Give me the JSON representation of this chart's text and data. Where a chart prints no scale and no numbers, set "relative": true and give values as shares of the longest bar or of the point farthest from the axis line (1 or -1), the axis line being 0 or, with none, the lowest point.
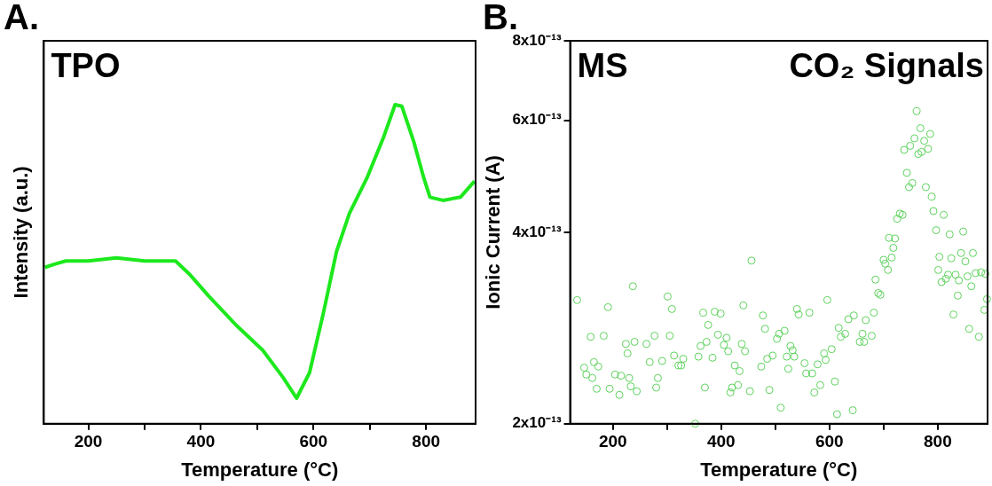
{
  "chart_data": [
    {
      "type": "line",
      "xlabel": "Temperature (°C)",
      "ylabel": "Intensity (a.u.)",
      "relative": true,
      "annotations": [
        "A.",
        "TPO"
      ],
      "xlim": [
        121,
        888
      ],
      "xticks": [
        200,
        {
          "value": 300,
          "label": null
        },
        400,
        {
          "value": 500,
          "label": null
        },
        600,
        {
          "value": 700,
          "label": null
        },
        800
      ],
      "grid": false,
      "legend": false,
      "marker": "none",
      "line_style": "solid",
      "series": [
        {
          "color": "#1de81d",
          "x": [
            123,
            140,
            160,
            200,
            250,
            300,
            355,
            379,
            414,
            462,
            510,
            546,
            570,
            593,
            618,
            641,
            664,
            695,
            725,
            745,
            757,
            778,
            796,
            807,
            830,
            861,
            886
          ],
          "values": [
            0.49,
            0.5,
            0.51,
            0.51,
            0.52,
            0.51,
            0.51,
            0.47,
            0.4,
            0.31,
            0.23,
            0.145,
            0.08,
            0.16,
            0.35,
            0.54,
            0.66,
            0.77,
            0.9,
            1.0,
            0.995,
            0.885,
            0.77,
            0.71,
            0.7,
            0.71,
            0.76
          ]
        }
      ]
    },
    {
      "type": "scatter",
      "xlabel": "Temperature (°C)",
      "ylabel": "Ionic Current (A)",
      "annotations": [
        "B.",
        "MS",
        "CO₂ Signals"
      ],
      "xlim": [
        121,
        892
      ],
      "xticks": [
        200,
        {
          "value": 300,
          "label": null
        },
        400,
        {
          "value": 500,
          "label": null
        },
        600,
        {
          "value": 700,
          "label": null
        },
        800
      ],
      "log": "y",
      "ylim": [
        2e-13,
        8e-13
      ],
      "yticks": [
        {
          "value": 2e-13,
          "label": "2x10⁻¹³"
        },
        {
          "value": 4e-13,
          "label": "4x10⁻¹³"
        },
        {
          "value": 6e-13,
          "label": "6x10⁻¹³"
        },
        {
          "value": 8e-13,
          "label": "8x10⁻¹³"
        }
      ],
      "grid": false,
      "legend": false,
      "marker": "circle",
      "series": [
        {
          "color": "#5fd35f",
          "x": [
            134,
            147,
            151,
            159,
            162,
            165,
            170,
            173,
            183,
            191,
            194,
            204,
            212,
            215,
            227,
            224,
            230,
            233,
            237,
            240,
            244,
            262,
            268,
            277,
            280,
            283,
            291,
            301,
            305,
            309,
            313,
            321,
            326,
            330,
            352,
            358,
            362,
            367,
            370,
            373,
            376,
            384,
            388,
            394,
            399,
            405,
            410,
            413,
            417,
            420,
            425,
            431,
            434,
            438,
            441,
            444,
            453,
            456,
            474,
            477,
            481,
            485,
            489,
            495,
            503,
            507,
            510,
            517,
            521,
            524,
            528,
            532,
            535,
            540,
            543,
            554,
            557,
            563,
            568,
            572,
            578,
            583,
            590,
            593,
            596,
            604,
            610,
            614,
            617,
            621,
            629,
            635,
            643,
            645,
            656,
            661,
            664,
            667,
            678,
            682,
            685,
            690,
            694,
            700,
            703,
            708,
            710,
            715,
            718,
            721,
            725,
            730,
            735,
            738,
            743,
            747,
            749,
            753,
            757,
            761,
            764,
            768,
            770,
            775,
            778,
            782,
            786,
            789,
            792,
            797,
            801,
            803,
            807,
            811,
            815,
            819,
            822,
            825,
            829,
            833,
            837,
            839,
            843,
            847,
            851,
            855,
            858,
            862,
            865,
            870,
            876,
            880,
            886,
            888,
            891
          ],
          "values": [
            3.13e-13,
            2.45e-13,
            2.39e-13,
            2.74e-13,
            2.36e-13,
            2.5e-13,
            2.27e-13,
            2.46e-13,
            2.75e-13,
            3.05e-13,
            2.27e-13,
            2.39e-13,
            2.22e-13,
            2.38e-13,
            2.58e-13,
            2.67e-13,
            2.36e-13,
            2.29e-13,
            3.29e-13,
            2.69e-13,
            2.25e-13,
            2.67e-13,
            2.5e-13,
            2.75e-13,
            2.28e-13,
            2.36e-13,
            2.51e-13,
            3.17e-13,
            2.75e-13,
            3.03e-13,
            2.56e-13,
            2.47e-13,
            2.47e-13,
            2.53e-13,
            2e-13,
            2.55e-13,
            2.65e-13,
            2.99e-13,
            2.28e-13,
            2.69e-13,
            2.86e-13,
            2.54e-13,
            3e-13,
            2.76e-13,
            2.98e-13,
            2.66e-13,
            2.73e-13,
            2.6e-13,
            2.24e-13,
            2.28e-13,
            2.47e-13,
            2.3e-13,
            2.42e-13,
            2.67e-13,
            3.07e-13,
            2.6e-13,
            2.25e-13,
            3.61e-13,
            2.46e-13,
            2.96e-13,
            2.82e-13,
            2.53e-13,
            2.26e-13,
            2.56e-13,
            2.72e-13,
            2.77e-13,
            2.12e-13,
            2.8e-13,
            2.55e-13,
            2.44e-13,
            2.65e-13,
            2.61e-13,
            2.55e-13,
            3.03e-13,
            2.97e-13,
            2.49e-13,
            2.4e-13,
            2.99e-13,
            2.4e-13,
            2.24e-13,
            2.48e-13,
            2.3e-13,
            2.58e-13,
            2.52e-13,
            3.13e-13,
            2.62e-13,
            2.33e-13,
            2.07e-13,
            2.83e-13,
            2.74e-13,
            2.77e-13,
            2.92e-13,
            2.1e-13,
            2.96e-13,
            2.69e-13,
            2.77e-13,
            2.69e-13,
            2.91e-13,
            2.75e-13,
            2.99e-13,
            3.37e-13,
            3.21e-13,
            3.19e-13,
            3.62e-13,
            3.57e-13,
            3.49e-13,
            3.92e-13,
            3.65e-13,
            3.78e-13,
            3.91e-13,
            4.2e-13,
            4.28e-13,
            4.26e-13,
            5.39e-13,
            4.96e-13,
            4.71e-13,
            5.47e-13,
            4.78e-13,
            5.62e-13,
            6.2e-13,
            5.31e-13,
            5.83e-13,
            5.35e-13,
            5.57e-13,
            4.71e-13,
            5.41e-13,
            5.71e-13,
            4.55e-13,
            4.32e-13,
            4.03e-13,
            3.49e-13,
            3.66e-13,
            3.34e-13,
            4.26e-13,
            3.38e-13,
            3.43e-13,
            3.97e-13,
            3.64e-13,
            2.97e-13,
            3.43e-13,
            3.18e-13,
            3.36e-13,
            3.71e-13,
            4.01e-13,
            3.6e-13,
            3.41e-13,
            2.82e-13,
            3.29e-13,
            3.71e-13,
            3.45e-13,
            2.74e-13,
            3.46e-13,
            3.02e-13,
            3.44e-13,
            3.14e-13
          ]
        }
      ]
    }
  ]
}
